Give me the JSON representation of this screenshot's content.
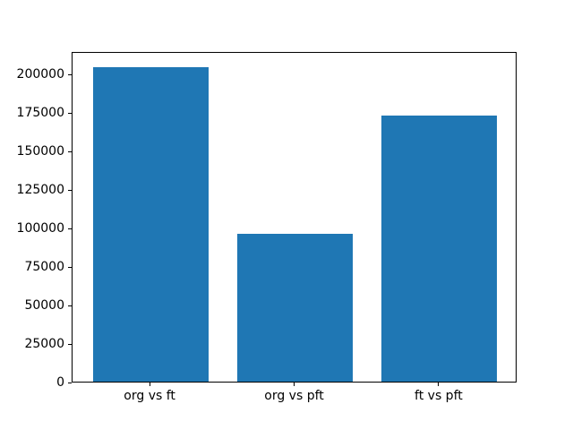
{
  "chart_data": {
    "type": "bar",
    "categories": [
      "org vs ft",
      "org vs pft",
      "ft vs pft"
    ],
    "values": [
      204300,
      95900,
      172700
    ],
    "title": "",
    "xlabel": "",
    "ylabel": "",
    "ylim": [
      0,
      214515
    ],
    "xlim": [
      -0.54,
      2.54
    ],
    "bar_positions": [
      0,
      1,
      2
    ],
    "bar_width": 0.8,
    "yticks": [
      0,
      25000,
      50000,
      75000,
      100000,
      125000,
      150000,
      175000,
      200000
    ],
    "bar_color": "#1f77b4",
    "axis_color": "#000000",
    "background_color": "#ffffff",
    "grid": false,
    "legend": null
  }
}
